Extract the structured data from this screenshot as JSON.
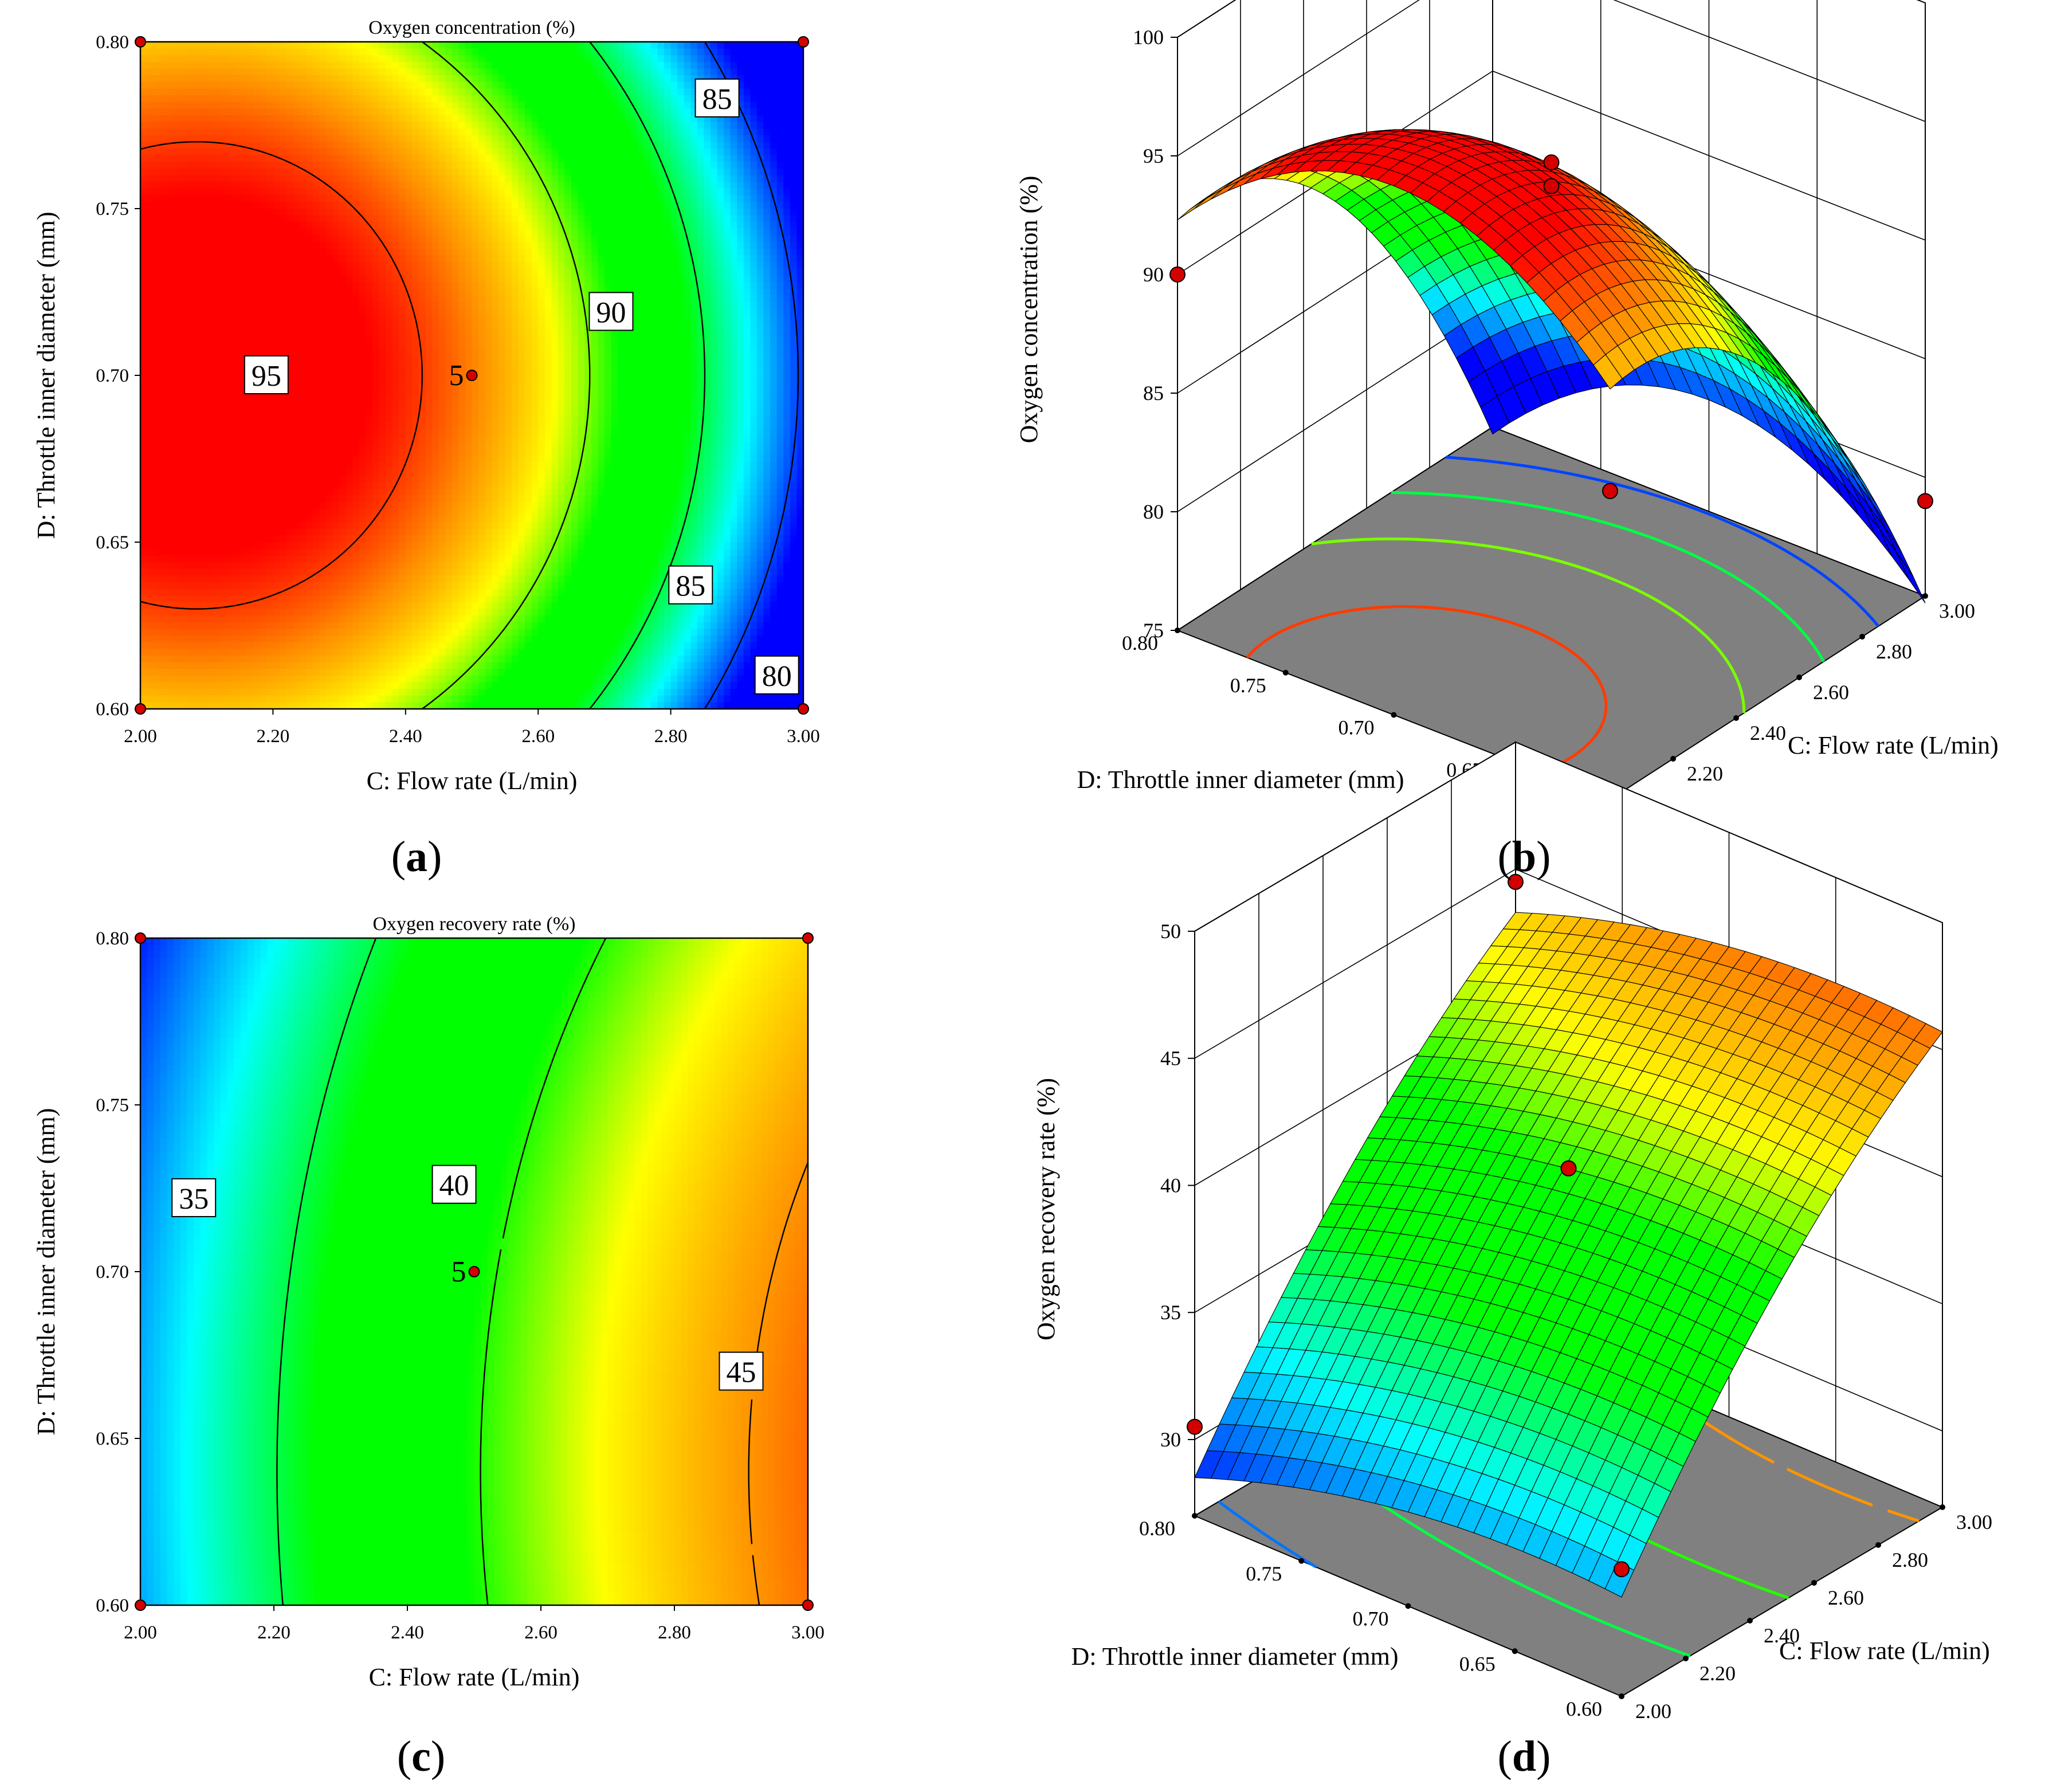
{
  "figure": {
    "panels": [
      {
        "id": "a",
        "label": "(a)",
        "letter": "a"
      },
      {
        "id": "b",
        "label": "(b)",
        "letter": "b"
      },
      {
        "id": "c",
        "label": "(c)",
        "letter": "c"
      },
      {
        "id": "d",
        "label": "(d)",
        "letter": "d"
      }
    ]
  },
  "chart_data": [
    {
      "id": "a",
      "type": "heatmap",
      "subtype": "contour",
      "title": "Oxygen concentration (%)",
      "xlabel": "C: Flow rate (L/min)",
      "ylabel": "D: Throttle inner diameter (mm)",
      "xlim": [
        2.0,
        3.0
      ],
      "ylim": [
        0.6,
        0.8
      ],
      "xticks": [
        "2.00",
        "2.20",
        "2.40",
        "2.60",
        "2.80",
        "3.00"
      ],
      "yticks": [
        "0.60",
        "0.65",
        "0.70",
        "0.75",
        "0.80"
      ],
      "contour_levels": [
        80,
        85,
        90,
        95
      ],
      "contour_labels": [
        {
          "text": "95",
          "x": 2.19,
          "y": 0.7
        },
        {
          "text": "90",
          "x": 2.71,
          "y": 0.719
        },
        {
          "text": "85",
          "x": 2.87,
          "y": 0.783
        },
        {
          "text": "85",
          "x": 2.83,
          "y": 0.637
        },
        {
          "text": "80",
          "x": 2.96,
          "y": 0.61
        }
      ],
      "model": {
        "c0": 93.8,
        "c1": -8.8,
        "c2": -5.3,
        "d1": 0.0,
        "d2": -5.0
      },
      "color_range": [
        79,
        96
      ],
      "design_points": [
        {
          "x": 2.0,
          "y": 0.8
        },
        {
          "x": 3.0,
          "y": 0.8
        },
        {
          "x": 2.0,
          "y": 0.6
        },
        {
          "x": 3.0,
          "y": 0.6
        },
        {
          "x": 2.5,
          "y": 0.7,
          "replicates": "5"
        }
      ]
    },
    {
      "id": "b",
      "type": "surface",
      "zlabel": "Oxygen concentration (%)",
      "xlabel": "C: Flow rate (L/min)",
      "ylabel": "D: Throttle inner diameter (mm)",
      "xticks": [
        "2.00",
        "2.20",
        "2.40",
        "2.60",
        "2.80",
        "3.00"
      ],
      "yticks": [
        "0.60",
        "0.65",
        "0.70",
        "0.75",
        "0.80"
      ],
      "zticks": [
        "75",
        "80",
        "85",
        "90",
        "95",
        "100"
      ],
      "zlim": [
        75,
        100
      ],
      "xlim": [
        2.0,
        3.0
      ],
      "ylim": [
        0.6,
        0.8
      ],
      "model": {
        "c0": 93.8,
        "c1": -8.8,
        "c2": -5.3,
        "d1": 0.0,
        "d2": -5.0
      },
      "color_range": [
        79,
        96
      ],
      "contour_levels": [
        80,
        85,
        90,
        95
      ],
      "design_points": [
        {
          "x": 2.0,
          "y": 0.8,
          "z": 90.0
        },
        {
          "x": 2.5,
          "y": 0.7,
          "z": 94.0
        },
        {
          "x": 2.5,
          "y": 0.7,
          "z": 93.0
        },
        {
          "x": 2.0,
          "y": 0.6,
          "z": 88.0
        },
        {
          "x": 3.0,
          "y": 0.6,
          "z": 79.0
        }
      ]
    },
    {
      "id": "c",
      "type": "heatmap",
      "subtype": "contour",
      "title": "Oxygen recovery rate (%)",
      "xlabel": "C: Flow rate (L/min)",
      "ylabel": "D: Throttle inner diameter (mm)",
      "xlim": [
        2.0,
        3.0
      ],
      "ylim": [
        0.6,
        0.8
      ],
      "xticks": [
        "2.00",
        "2.20",
        "2.40",
        "2.60",
        "2.80",
        "3.00"
      ],
      "yticks": [
        "0.60",
        "0.65",
        "0.70",
        "0.75",
        "0.80"
      ],
      "contour_levels": [
        35,
        40,
        45
      ],
      "contour_labels": [
        {
          "text": "35",
          "x": 2.08,
          "y": 0.722
        },
        {
          "text": "40",
          "x": 2.47,
          "y": 0.726
        },
        {
          "text": "45",
          "x": 2.9,
          "y": 0.67
        }
      ],
      "model": {
        "c0": 39.5,
        "c1": 7.4,
        "c2": -1.4,
        "d1": -1.2,
        "d2": -1.0
      },
      "color_range": [
        28,
        48
      ],
      "design_points": [
        {
          "x": 2.0,
          "y": 0.8
        },
        {
          "x": 3.0,
          "y": 0.8
        },
        {
          "x": 2.0,
          "y": 0.6
        },
        {
          "x": 3.0,
          "y": 0.6
        },
        {
          "x": 2.5,
          "y": 0.7,
          "replicates": "5"
        }
      ]
    },
    {
      "id": "d",
      "type": "surface",
      "zlabel": "Oxygen recovery rate (%)",
      "xlabel": "C: Flow rate (L/min)",
      "ylabel": "D: Throttle inner diameter (mm)",
      "xticks": [
        "2.00",
        "2.20",
        "2.40",
        "2.60",
        "2.80",
        "3.00"
      ],
      "yticks": [
        "0.60",
        "0.65",
        "0.70",
        "0.75",
        "0.80"
      ],
      "zticks": [
        "30",
        "35",
        "40",
        "45",
        "50"
      ],
      "zlim": [
        27,
        50
      ],
      "xlim": [
        2.0,
        3.0
      ],
      "ylim": [
        0.6,
        0.8
      ],
      "model": {
        "c0": 39.5,
        "c1": 7.4,
        "c2": -1.4,
        "d1": -1.2,
        "d2": -1.0
      },
      "color_range": [
        28,
        48
      ],
      "contour_levels": [
        30,
        35,
        40,
        45
      ],
      "design_points": [
        {
          "x": 2.0,
          "y": 0.8,
          "z": 30.5
        },
        {
          "x": 2.5,
          "y": 0.7,
          "z": 40.5
        },
        {
          "x": 2.0,
          "y": 0.6,
          "z": 32.0
        },
        {
          "x": 3.0,
          "y": 0.8,
          "z": 44.5
        }
      ]
    }
  ]
}
